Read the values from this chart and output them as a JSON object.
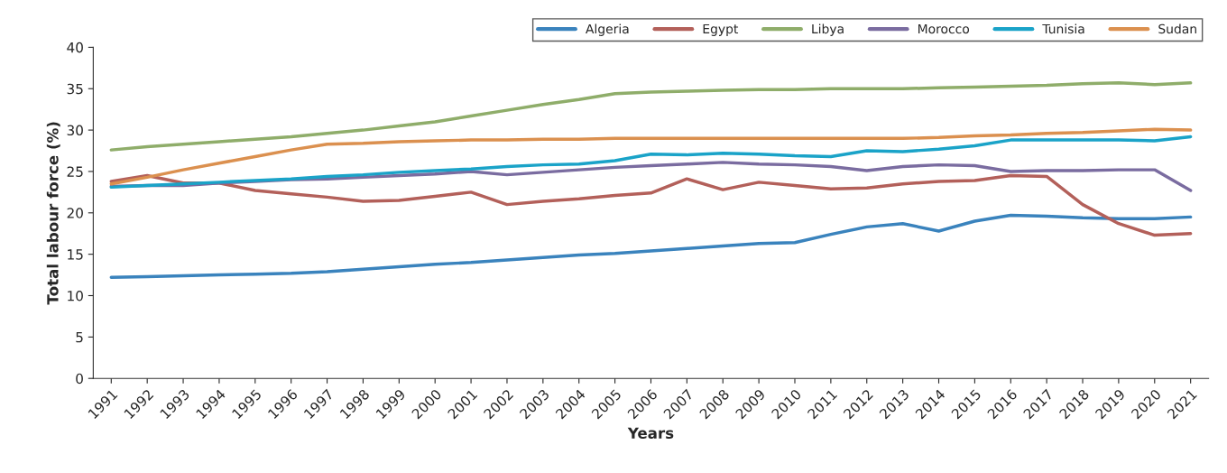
{
  "chart_data": {
    "type": "line",
    "xlabel": "Years",
    "ylabel": "Total labour force (%)",
    "categories": [
      "1991",
      "1992",
      "1993",
      "1994",
      "1995",
      "1996",
      "1997",
      "1998",
      "1999",
      "2000",
      "2001",
      "2002",
      "2003",
      "2004",
      "2005",
      "2006",
      "2007",
      "2008",
      "2009",
      "2010",
      "2011",
      "2012",
      "2013",
      "2014",
      "2015",
      "2016",
      "2017",
      "2018",
      "2019",
      "2020",
      "2021"
    ],
    "ylim": [
      0,
      40
    ],
    "yticks": [
      0,
      5,
      10,
      15,
      20,
      25,
      30,
      35,
      40
    ],
    "grid": false,
    "legend": "top right",
    "marker": "none",
    "line_style": "solid",
    "series": [
      {
        "name": "Algeria",
        "color": "#3a83bd",
        "values": [
          12.2,
          12.3,
          12.4,
          12.5,
          12.6,
          12.7,
          12.9,
          13.2,
          13.5,
          13.8,
          14.0,
          14.3,
          14.6,
          14.9,
          15.1,
          15.4,
          15.7,
          16.0,
          16.3,
          16.4,
          17.4,
          18.3,
          18.7,
          17.8,
          19.0,
          19.7,
          19.6,
          19.4,
          19.3,
          19.3,
          19.5
        ]
      },
      {
        "name": "Egypt",
        "color": "#b3605a",
        "values": [
          23.8,
          24.5,
          23.6,
          23.6,
          22.7,
          22.3,
          21.9,
          21.4,
          21.5,
          22.0,
          22.5,
          21.0,
          21.4,
          21.7,
          22.1,
          22.4,
          24.1,
          22.8,
          23.7,
          23.3,
          22.9,
          23.0,
          23.5,
          23.8,
          23.9,
          24.5,
          24.4,
          21.0,
          18.7,
          17.3,
          17.5
        ]
      },
      {
        "name": "Libya",
        "color": "#8fad6a",
        "values": [
          27.6,
          28.0,
          28.3,
          28.6,
          28.9,
          29.2,
          29.6,
          30.0,
          30.5,
          31.0,
          31.7,
          32.4,
          33.1,
          33.7,
          34.4,
          34.6,
          34.7,
          34.8,
          34.9,
          34.9,
          35.0,
          35.0,
          35.0,
          35.1,
          35.2,
          35.3,
          35.4,
          35.6,
          35.7,
          35.5,
          35.7
        ]
      },
      {
        "name": "Morocco",
        "color": "#7a6ca0",
        "values": [
          23.2,
          23.3,
          23.3,
          23.6,
          23.8,
          24.0,
          24.1,
          24.3,
          24.5,
          24.7,
          25.0,
          24.6,
          24.9,
          25.2,
          25.5,
          25.7,
          25.9,
          26.1,
          25.9,
          25.8,
          25.6,
          25.1,
          25.6,
          25.8,
          25.7,
          25.0,
          25.1,
          25.1,
          25.2,
          25.2,
          22.7
        ]
      },
      {
        "name": "Tunisia",
        "color": "#1aa3c8",
        "values": [
          23.1,
          23.3,
          23.5,
          23.7,
          23.9,
          24.1,
          24.4,
          24.6,
          24.9,
          25.1,
          25.3,
          25.6,
          25.8,
          25.9,
          26.3,
          27.1,
          27.0,
          27.2,
          27.1,
          26.9,
          26.8,
          27.5,
          27.4,
          27.7,
          28.1,
          28.8,
          28.8,
          28.8,
          28.8,
          28.7,
          29.2
        ]
      },
      {
        "name": "Sudan",
        "color": "#db904f",
        "values": [
          23.5,
          24.3,
          25.2,
          26.0,
          26.8,
          27.6,
          28.3,
          28.4,
          28.6,
          28.7,
          28.8,
          28.8,
          28.9,
          28.9,
          29.0,
          29.0,
          29.0,
          29.0,
          29.0,
          29.0,
          29.0,
          29.0,
          29.0,
          29.1,
          29.3,
          29.4,
          29.6,
          29.7,
          29.9,
          30.1,
          30.0
        ]
      }
    ]
  }
}
